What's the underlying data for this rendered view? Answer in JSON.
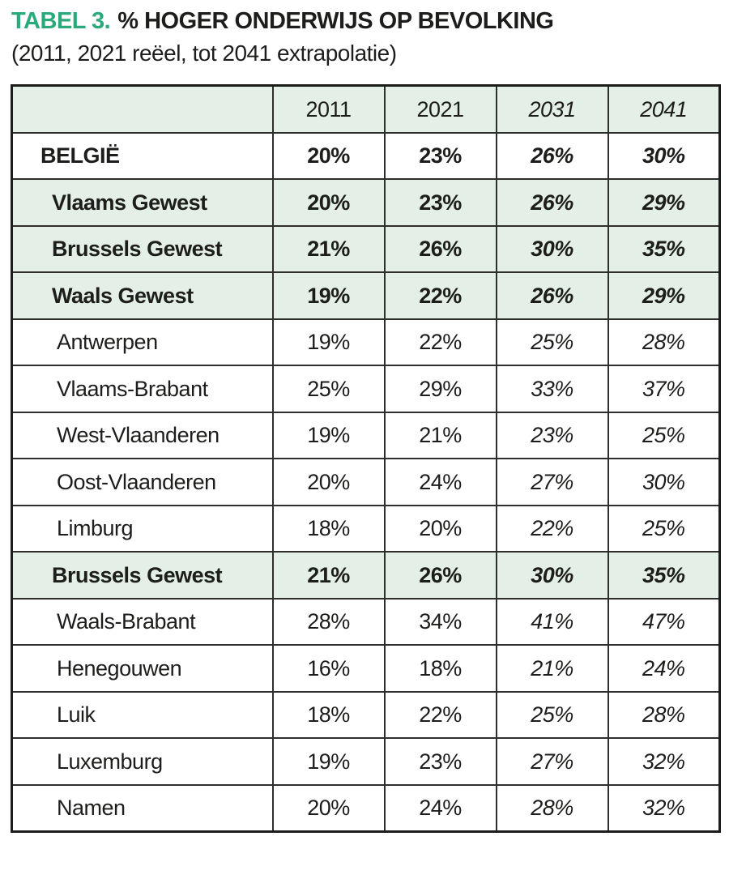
{
  "title": {
    "label": "TABEL 3.",
    "text": "% HOGER ONDERWIJS OP BEVOLKING",
    "subtitle": "(2011, 2021 reëel, tot 2041 extrapolatie)"
  },
  "colors": {
    "accent_green": "#2aa97a",
    "row_green": "#e3efe7",
    "border_inner": "#2e2e2d",
    "border_outer": "#1c1c1b",
    "text": "#1d1d1b"
  },
  "table": {
    "columns": [
      "",
      "2011",
      "2021",
      "2031",
      "2041"
    ],
    "italic_columns": [
      "2031",
      "2041"
    ],
    "rows": [
      {
        "label": "BELGIË",
        "style": "country",
        "values": [
          "20%",
          "23%",
          "26%",
          "30%"
        ]
      },
      {
        "label": "Vlaams Gewest",
        "style": "region",
        "values": [
          "20%",
          "23%",
          "26%",
          "29%"
        ]
      },
      {
        "label": "Brussels Gewest",
        "style": "region",
        "values": [
          "21%",
          "26%",
          "30%",
          "35%"
        ]
      },
      {
        "label": "Waals Gewest",
        "style": "region",
        "values": [
          "19%",
          "22%",
          "26%",
          "29%"
        ]
      },
      {
        "label": "Antwerpen",
        "style": "province",
        "values": [
          "19%",
          "22%",
          "25%",
          "28%"
        ]
      },
      {
        "label": "Vlaams-Brabant",
        "style": "province",
        "values": [
          "25%",
          "29%",
          "33%",
          "37%"
        ]
      },
      {
        "label": "West-Vlaanderen",
        "style": "province",
        "values": [
          "19%",
          "21%",
          "23%",
          "25%"
        ]
      },
      {
        "label": "Oost-Vlaanderen",
        "style": "province",
        "values": [
          "20%",
          "24%",
          "27%",
          "30%"
        ]
      },
      {
        "label": "Limburg",
        "style": "province",
        "values": [
          "18%",
          "20%",
          "22%",
          "25%"
        ]
      },
      {
        "label": "Brussels Gewest",
        "style": "region",
        "values": [
          "21%",
          "26%",
          "30%",
          "35%"
        ]
      },
      {
        "label": "Waals-Brabant",
        "style": "province",
        "values": [
          "28%",
          "34%",
          "41%",
          "47%"
        ]
      },
      {
        "label": "Henegouwen",
        "style": "province",
        "values": [
          "16%",
          "18%",
          "21%",
          "24%"
        ]
      },
      {
        "label": "Luik",
        "style": "province",
        "values": [
          "18%",
          "22%",
          "25%",
          "28%"
        ]
      },
      {
        "label": "Luxemburg",
        "style": "province",
        "values": [
          "19%",
          "23%",
          "27%",
          "32%"
        ]
      },
      {
        "label": "Namen",
        "style": "province",
        "values": [
          "20%",
          "24%",
          "28%",
          "32%"
        ]
      }
    ]
  },
  "chart_data": {
    "type": "table",
    "title": "TABEL 3. % HOGER ONDERWIJS OP BEVOLKING",
    "subtitle": "(2011, 2021 reëel, tot 2041 extrapolatie)",
    "columns": [
      2011,
      2021,
      2031,
      2041
    ],
    "note": "2011 and 2021 are real figures; 2031 and 2041 (italic) are extrapolations",
    "series": [
      {
        "name": "BELGIË",
        "values": [
          20,
          23,
          26,
          30
        ]
      },
      {
        "name": "Vlaams Gewest",
        "values": [
          20,
          23,
          26,
          29
        ]
      },
      {
        "name": "Brussels Gewest",
        "values": [
          21,
          26,
          30,
          35
        ]
      },
      {
        "name": "Waals Gewest",
        "values": [
          19,
          22,
          26,
          29
        ]
      },
      {
        "name": "Antwerpen",
        "values": [
          19,
          22,
          25,
          28
        ]
      },
      {
        "name": "Vlaams-Brabant",
        "values": [
          25,
          29,
          33,
          37
        ]
      },
      {
        "name": "West-Vlaanderen",
        "values": [
          19,
          21,
          23,
          25
        ]
      },
      {
        "name": "Oost-Vlaanderen",
        "values": [
          20,
          24,
          27,
          30
        ]
      },
      {
        "name": "Limburg",
        "values": [
          18,
          20,
          22,
          25
        ]
      },
      {
        "name": "Brussels Gewest",
        "values": [
          21,
          26,
          30,
          35
        ]
      },
      {
        "name": "Waals-Brabant",
        "values": [
          28,
          34,
          41,
          47
        ]
      },
      {
        "name": "Henegouwen",
        "values": [
          16,
          18,
          21,
          24
        ]
      },
      {
        "name": "Luik",
        "values": [
          18,
          22,
          25,
          28
        ]
      },
      {
        "name": "Luxemburg",
        "values": [
          19,
          23,
          27,
          32
        ]
      },
      {
        "name": "Namen",
        "values": [
          20,
          24,
          28,
          32
        ]
      }
    ],
    "unit": "%"
  }
}
